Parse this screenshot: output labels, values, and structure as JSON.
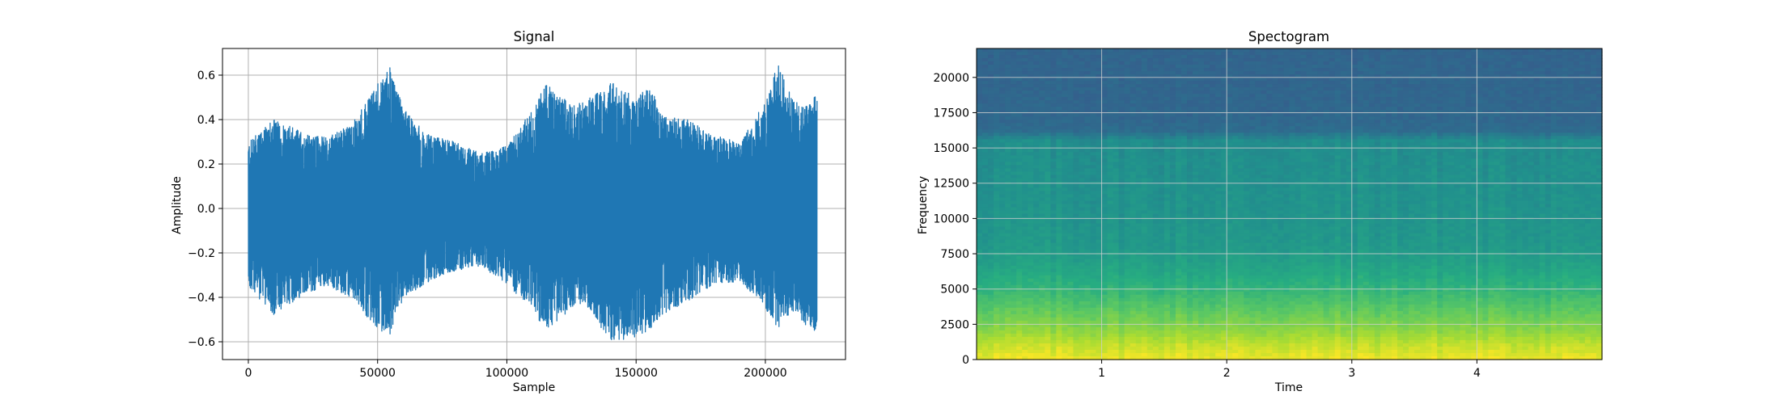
{
  "chart_data": [
    {
      "type": "line",
      "title": "Signal",
      "xlabel": "Sample",
      "ylabel": "Amplitude",
      "xlim": [
        -10000,
        231000
      ],
      "ylim": [
        -0.68,
        0.72
      ],
      "grid": true,
      "line_color": "#1f77b4",
      "xticks": [
        0,
        50000,
        100000,
        150000,
        200000
      ],
      "xtick_labels": [
        "0",
        "50000",
        "100000",
        "150000",
        "200000"
      ],
      "yticks": [
        -0.6,
        -0.4,
        -0.2,
        0.0,
        0.2,
        0.4,
        0.6
      ],
      "ytick_labels": [
        "−0.6",
        "−0.4",
        "−0.2",
        "0.0",
        "0.2",
        "0.4",
        "0.6"
      ],
      "envelope": {
        "x": [
          0,
          10000,
          20000,
          30000,
          40000,
          50000,
          55000,
          60000,
          70000,
          80000,
          90000,
          100000,
          110000,
          115000,
          120000,
          130000,
          140000,
          150000,
          155000,
          160000,
          170000,
          180000,
          190000,
          200000,
          205000,
          210000,
          215000,
          220000
        ],
        "upper": [
          0.3,
          0.4,
          0.35,
          0.32,
          0.38,
          0.56,
          0.64,
          0.45,
          0.33,
          0.3,
          0.25,
          0.28,
          0.45,
          0.57,
          0.5,
          0.48,
          0.57,
          0.5,
          0.57,
          0.42,
          0.4,
          0.33,
          0.3,
          0.48,
          0.66,
          0.5,
          0.45,
          0.52
        ],
        "lower": [
          -0.36,
          -0.48,
          -0.4,
          -0.35,
          -0.4,
          -0.55,
          -0.57,
          -0.4,
          -0.33,
          -0.28,
          -0.26,
          -0.34,
          -0.46,
          -0.55,
          -0.5,
          -0.42,
          -0.6,
          -0.58,
          -0.55,
          -0.48,
          -0.42,
          -0.34,
          -0.33,
          -0.45,
          -0.55,
          -0.47,
          -0.52,
          -0.56
        ]
      }
    },
    {
      "type": "heatmap",
      "title": "Spectogram",
      "xlabel": "Time",
      "ylabel": "Frequency",
      "xlim": [
        0,
        5.0
      ],
      "ylim": [
        0,
        22050
      ],
      "grid": true,
      "colormap": "viridis",
      "xticks": [
        1,
        2,
        3,
        4
      ],
      "xtick_labels": [
        "1",
        "2",
        "3",
        "4"
      ],
      "yticks": [
        0,
        2500,
        5000,
        7500,
        10000,
        12500,
        15000,
        17500,
        20000
      ],
      "ytick_labels": [
        "0",
        "2500",
        "5000",
        "7500",
        "10000",
        "12500",
        "15000",
        "17500",
        "20000"
      ],
      "freq_band_levels": {
        "freq": [
          0,
          1000,
          2000,
          3000,
          4000,
          5000,
          6000,
          7000,
          8000,
          10000,
          12000,
          14000,
          15500,
          16200,
          17000,
          22050
        ],
        "level": [
          0.98,
          0.92,
          0.84,
          0.78,
          0.72,
          0.66,
          0.61,
          0.57,
          0.54,
          0.52,
          0.51,
          0.5,
          0.49,
          0.36,
          0.34,
          0.33
        ]
      }
    }
  ]
}
